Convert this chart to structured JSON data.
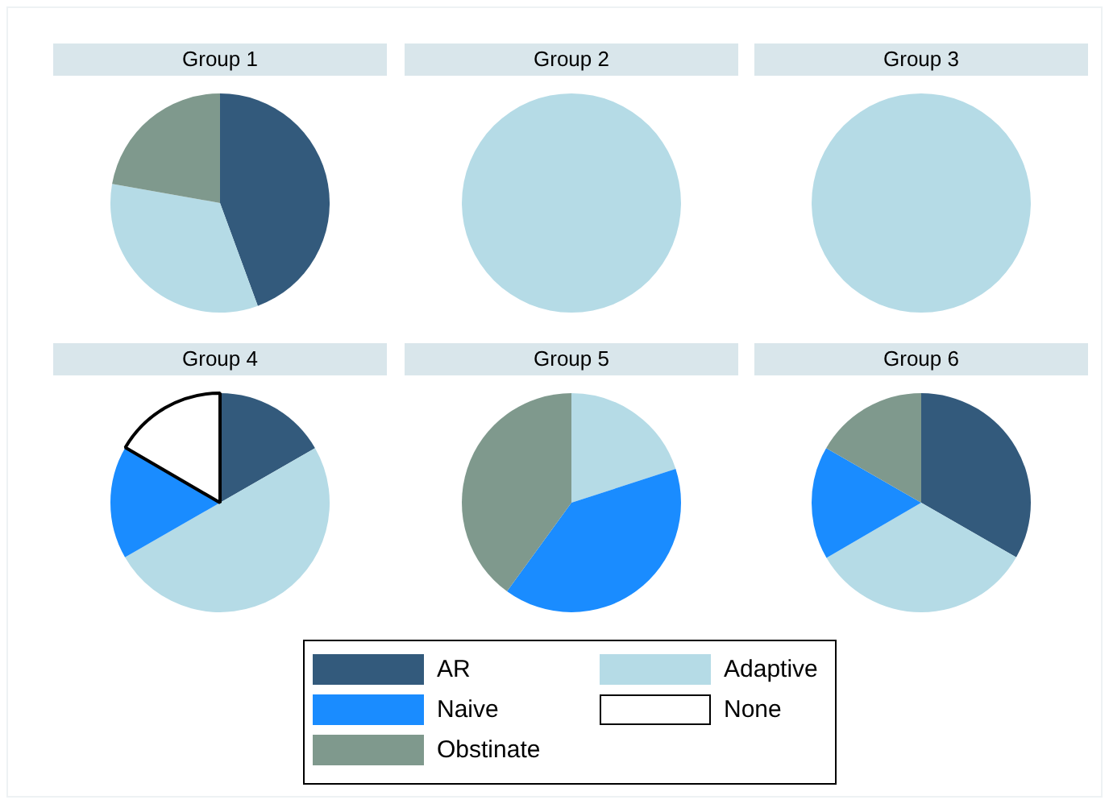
{
  "chart_data": {
    "type": "pie",
    "categories": [
      "AR",
      "Adaptive",
      "Naive",
      "None",
      "Obstinate"
    ],
    "colors": [
      "#335a7c",
      "#b5dbe6",
      "#1a8cff",
      "#ffffff",
      "#7f998d"
    ],
    "legend": "bottom",
    "series": [
      {
        "name": "Group 1",
        "values": [
          44.4,
          33.4,
          0,
          0,
          22.2
        ]
      },
      {
        "name": "Group 2",
        "values": [
          0,
          100,
          0,
          0,
          0
        ]
      },
      {
        "name": "Group 3",
        "values": [
          0,
          100,
          0,
          0,
          0
        ]
      },
      {
        "name": "Group 4",
        "values": [
          16.7,
          50,
          16.7,
          16.6,
          0
        ]
      },
      {
        "name": "Group 5",
        "values": [
          0,
          20,
          40,
          0,
          40
        ]
      },
      {
        "name": "Group 6",
        "values": [
          33.3,
          33.3,
          16.7,
          0,
          16.7
        ]
      }
    ]
  }
}
